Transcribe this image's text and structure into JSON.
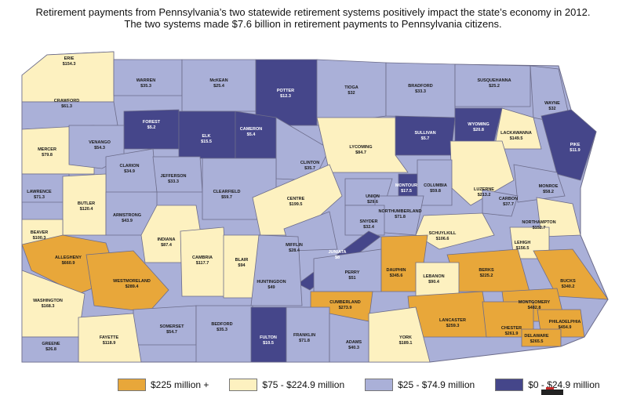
{
  "title": {
    "line1": "Retirement payments from Pennsylvania’s two statewide retirement systems positively impact the state’s economy in 2012.",
    "line2": "The two systems made $7.6 billion in retirement payments to Pennsylvania citizens."
  },
  "colors": {
    "high": "#e8a73a",
    "mid": "#fdf1c0",
    "low": "#aab0d8",
    "lowest": "#45468a",
    "border": "#6c6c8a"
  },
  "legend": [
    {
      "label": "$225 million +",
      "tier": "high"
    },
    {
      "label": "$75 - $224.9 million",
      "tier": "mid"
    },
    {
      "label": "$25 - $74.9 million",
      "tier": "low"
    },
    {
      "label": "$0 - $24.9 million",
      "tier": "lowest"
    }
  ],
  "counties": [
    {
      "name": "ERIE",
      "value": "$154.3",
      "tier": "mid"
    },
    {
      "name": "WARREN",
      "value": "$35.3",
      "tier": "low"
    },
    {
      "name": "McKEAN",
      "value": "$25.4",
      "tier": "low"
    },
    {
      "name": "POTTER",
      "value": "$12.3",
      "tier": "lowest"
    },
    {
      "name": "TIOGA",
      "value": "$32",
      "tier": "low"
    },
    {
      "name": "BRADFORD",
      "value": "$33.3",
      "tier": "low"
    },
    {
      "name": "SUSQUEHANNA",
      "value": "$25.2",
      "tier": "low"
    },
    {
      "name": "WAYNE",
      "value": "$32",
      "tier": "low"
    },
    {
      "name": "CRAWFORD",
      "value": "$61.3",
      "tier": "low"
    },
    {
      "name": "FOREST",
      "value": "$5.2",
      "tier": "lowest"
    },
    {
      "name": "ELK",
      "value": "$15.5",
      "tier": "lowest"
    },
    {
      "name": "CAMERON",
      "value": "$5.4",
      "tier": "lowest"
    },
    {
      "name": "SULLIVAN",
      "value": "$5.7",
      "tier": "lowest"
    },
    {
      "name": "WYOMING",
      "value": "$20.8",
      "tier": "lowest"
    },
    {
      "name": "LACKAWANNA",
      "value": "$149.5",
      "tier": "mid"
    },
    {
      "name": "PIKE",
      "value": "$11.9",
      "tier": "lowest"
    },
    {
      "name": "MERCER",
      "value": "$79.8",
      "tier": "mid"
    },
    {
      "name": "VENANGO",
      "value": "$54.3",
      "tier": "low"
    },
    {
      "name": "CLARION",
      "value": "$34.9",
      "tier": "low"
    },
    {
      "name": "JEFFERSON",
      "value": "$33.3",
      "tier": "low"
    },
    {
      "name": "CLINTON",
      "value": "$35.7",
      "tier": "low"
    },
    {
      "name": "LYCOMING",
      "value": "$84.7",
      "tier": "mid"
    },
    {
      "name": "LUZERNE",
      "value": "$213.2",
      "tier": "mid"
    },
    {
      "name": "MONROE",
      "value": "$58.2",
      "tier": "low"
    },
    {
      "name": "LAWRENCE",
      "value": "$71.3",
      "tier": "low"
    },
    {
      "name": "BUTLER",
      "value": "$120.4",
      "tier": "mid"
    },
    {
      "name": "CLEARFIELD",
      "value": "$59.7",
      "tier": "low"
    },
    {
      "name": "CENTRE",
      "value": "$199.5",
      "tier": "mid"
    },
    {
      "name": "UNION",
      "value": "$29.6",
      "tier": "low"
    },
    {
      "name": "MONTOUR",
      "value": "$17.5",
      "tier": "lowest"
    },
    {
      "name": "COLUMBIA",
      "value": "$59.8",
      "tier": "low"
    },
    {
      "name": "CARBON",
      "value": "$37.7",
      "tier": "low"
    },
    {
      "name": "NORTHUMBERLAND",
      "value": "$71.8",
      "tier": "low"
    },
    {
      "name": "ARMSTRONG",
      "value": "$43.9",
      "tier": "low"
    },
    {
      "name": "SNYDER",
      "value": "$32.4",
      "tier": "low"
    },
    {
      "name": "NORTHAMPTON",
      "value": "$152.7",
      "tier": "mid"
    },
    {
      "name": "BEAVER",
      "value": "$100.3",
      "tier": "mid"
    },
    {
      "name": "INDIANA",
      "value": "$87.4",
      "tier": "mid"
    },
    {
      "name": "SCHUYLKILL",
      "value": "$106.6",
      "tier": "mid"
    },
    {
      "name": "LEHIGH",
      "value": "$156.5",
      "tier": "mid"
    },
    {
      "name": "MIFFLIN",
      "value": "$28.4",
      "tier": "low"
    },
    {
      "name": "JUNIATA",
      "value": "$8",
      "tier": "lowest"
    },
    {
      "name": "ALLEGHENY",
      "value": "$660.9",
      "tier": "high"
    },
    {
      "name": "CAMBRIA",
      "value": "$117.7",
      "tier": "mid"
    },
    {
      "name": "BLAIR",
      "value": "$94",
      "tier": "mid"
    },
    {
      "name": "PERRY",
      "value": "$51",
      "tier": "low"
    },
    {
      "name": "DAUPHIN",
      "value": "$345.6",
      "tier": "high"
    },
    {
      "name": "BERKS",
      "value": "$225.2",
      "tier": "high"
    },
    {
      "name": "LEBANON",
      "value": "$90.4",
      "tier": "mid"
    },
    {
      "name": "BUCKS",
      "value": "$340.2",
      "tier": "high"
    },
    {
      "name": "WESTMORELAND",
      "value": "$289.4",
      "tier": "high"
    },
    {
      "name": "HUNTINGDON",
      "value": "$49",
      "tier": "low"
    },
    {
      "name": "MONTGOMERY",
      "value": "$482.8",
      "tier": "high"
    },
    {
      "name": "CUMBERLAND",
      "value": "$273.9",
      "tier": "high"
    },
    {
      "name": "WASHINGTON",
      "value": "$168.3",
      "tier": "mid"
    },
    {
      "name": "LANCASTER",
      "value": "$259.3",
      "tier": "high"
    },
    {
      "name": "PHILADELPHIA",
      "value": "$454.9",
      "tier": "high"
    },
    {
      "name": "SOMERSET",
      "value": "$54.7",
      "tier": "low"
    },
    {
      "name": "BEDFORD",
      "value": "$35.3",
      "tier": "low"
    },
    {
      "name": "CHESTER",
      "value": "$261.9",
      "tier": "high"
    },
    {
      "name": "DELAWARE",
      "value": "$265.5",
      "tier": "high"
    },
    {
      "name": "YORK",
      "value": "$189.1",
      "tier": "mid"
    },
    {
      "name": "FAYETTE",
      "value": "$118.9",
      "tier": "mid"
    },
    {
      "name": "FULTON",
      "value": "$10.5",
      "tier": "lowest"
    },
    {
      "name": "FRANKLIN",
      "value": "$71.8",
      "tier": "low"
    },
    {
      "name": "ADAMS",
      "value": "$40.3",
      "tier": "low"
    },
    {
      "name": "GREENE",
      "value": "$26.8",
      "tier": "low"
    }
  ]
}
